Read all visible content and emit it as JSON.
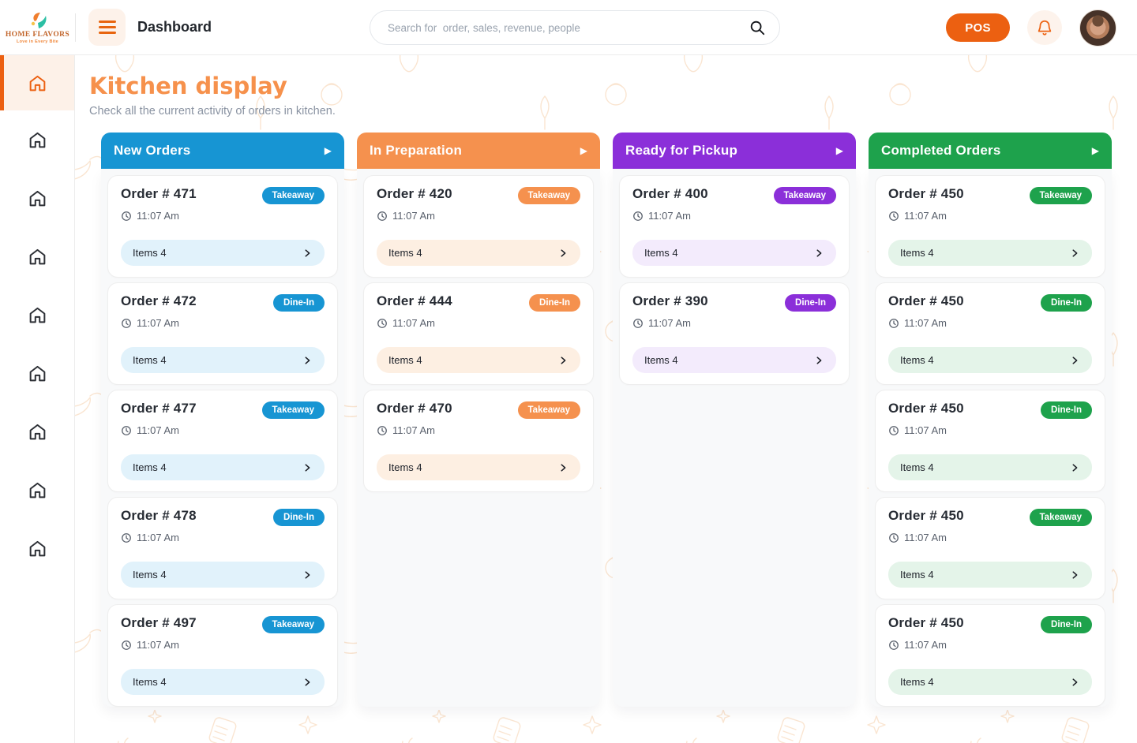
{
  "header": {
    "logo": {
      "name": "HOME FLAVORS",
      "tagline": "Love in Every Bite"
    },
    "page_title": "Dashboard",
    "search_placeholder": "Search for  order, sales, revenue, people",
    "pos_label": "POS"
  },
  "sidebar": {
    "items": [
      {
        "icon": "home-icon",
        "active": true
      },
      {
        "icon": "home-icon",
        "active": false
      },
      {
        "icon": "home-icon",
        "active": false
      },
      {
        "icon": "home-icon",
        "active": false
      },
      {
        "icon": "home-icon",
        "active": false
      },
      {
        "icon": "home-icon",
        "active": false
      },
      {
        "icon": "home-icon",
        "active": false
      },
      {
        "icon": "home-icon",
        "active": false
      },
      {
        "icon": "home-icon",
        "active": false
      }
    ]
  },
  "page": {
    "title": "Kitchen display",
    "subtitle": "Check all the current activity of orders in kitchen."
  },
  "icons": {
    "column_arrow": "▶"
  },
  "brand_colors": {
    "accent_orange": "#ec6011",
    "title_orange": "#f6914c"
  },
  "columns": [
    {
      "id": "new-orders",
      "title": "New Orders",
      "accent": "#1795d3",
      "tint": "#e1f2fb",
      "orders": [
        {
          "number": "Order # 471",
          "type": "Takeaway",
          "time": "11:07 Am",
          "items": "Items 4"
        },
        {
          "number": "Order # 472",
          "type": "Dine-In",
          "time": "11:07 Am",
          "items": "Items 4"
        },
        {
          "number": "Order # 477",
          "type": "Takeaway",
          "time": "11:07 Am",
          "items": "Items 4"
        },
        {
          "number": "Order # 478",
          "type": "Dine-In",
          "time": "11:07 Am",
          "items": "Items 4"
        },
        {
          "number": "Order # 497",
          "type": "Takeaway",
          "time": "11:07 Am",
          "items": "Items 4"
        }
      ]
    },
    {
      "id": "in-preparation",
      "title": "In Preparation",
      "accent": "#f5914e",
      "tint": "#fdefe2",
      "orders": [
        {
          "number": "Order # 420",
          "type": "Takeaway",
          "time": "11:07 Am",
          "items": "Items 4"
        },
        {
          "number": "Order # 444",
          "type": "Dine-In",
          "time": "11:07 Am",
          "items": "Items 4"
        },
        {
          "number": "Order # 470",
          "type": "Takeaway",
          "time": "11:07 Am",
          "items": "Items 4"
        }
      ]
    },
    {
      "id": "ready-for-pickup",
      "title": "Ready for Pickup",
      "accent": "#8b2fd9",
      "tint": "#f3ebfc",
      "orders": [
        {
          "number": "Order # 400",
          "type": "Takeaway",
          "time": "11:07 Am",
          "items": "Items 4"
        },
        {
          "number": "Order # 390",
          "type": "Dine-In",
          "time": "11:07 Am",
          "items": "Items 4"
        }
      ]
    },
    {
      "id": "completed-orders",
      "title": "Completed Orders",
      "accent": "#1ea24c",
      "tint": "#e4f4e9",
      "orders": [
        {
          "number": "Order # 450",
          "type": "Takeaway",
          "time": "11:07 Am",
          "items": "Items 4"
        },
        {
          "number": "Order # 450",
          "type": "Dine-In",
          "time": "11:07 Am",
          "items": "Items 4"
        },
        {
          "number": "Order # 450",
          "type": "Dine-In",
          "time": "11:07 Am",
          "items": "Items 4"
        },
        {
          "number": "Order # 450",
          "type": "Takeaway",
          "time": "11:07 Am",
          "items": "Items 4"
        },
        {
          "number": "Order # 450",
          "type": "Dine-In",
          "time": "11:07 Am",
          "items": "Items 4"
        }
      ]
    }
  ]
}
